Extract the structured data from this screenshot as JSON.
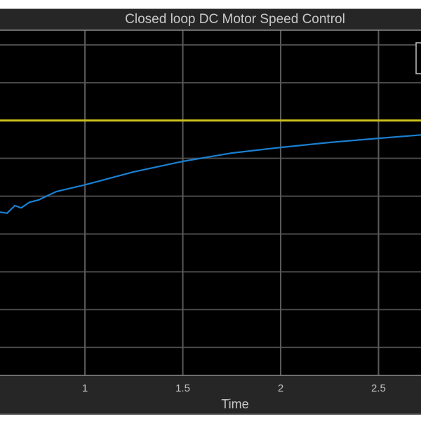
{
  "chart_data": {
    "type": "line",
    "title": "Closed loop DC Motor Speed Control",
    "xlabel": "Time",
    "ylabel": "",
    "xlim": [
      0.566,
      2.717
    ],
    "ylim": [
      0.26,
      9.39
    ],
    "xticks": [
      1,
      1.5,
      2,
      2.5
    ],
    "xtick_labels": [
      "1",
      "1.5",
      "2",
      "2.5"
    ],
    "yticks": [
      1,
      2,
      3,
      4,
      5,
      6,
      7,
      8,
      9
    ],
    "grid": true,
    "background": "#000000",
    "legend": "top-right",
    "series": [
      {
        "color": "#c8c01e",
        "x": [
          0.566,
          2.717
        ],
        "y": [
          7,
          7
        ]
      },
      {
        "color": "#1a7fd0",
        "x": [
          0.566,
          0.602,
          0.642,
          0.674,
          0.717,
          0.763,
          0.799,
          0.853,
          1.0,
          1.247,
          1.5,
          1.75,
          2.0,
          2.25,
          2.5,
          2.717
        ],
        "y": [
          4.58,
          4.55,
          4.75,
          4.69,
          4.84,
          4.9,
          4.99,
          5.12,
          5.3,
          5.64,
          5.92,
          6.14,
          6.29,
          6.42,
          6.53,
          6.62
        ]
      }
    ]
  }
}
